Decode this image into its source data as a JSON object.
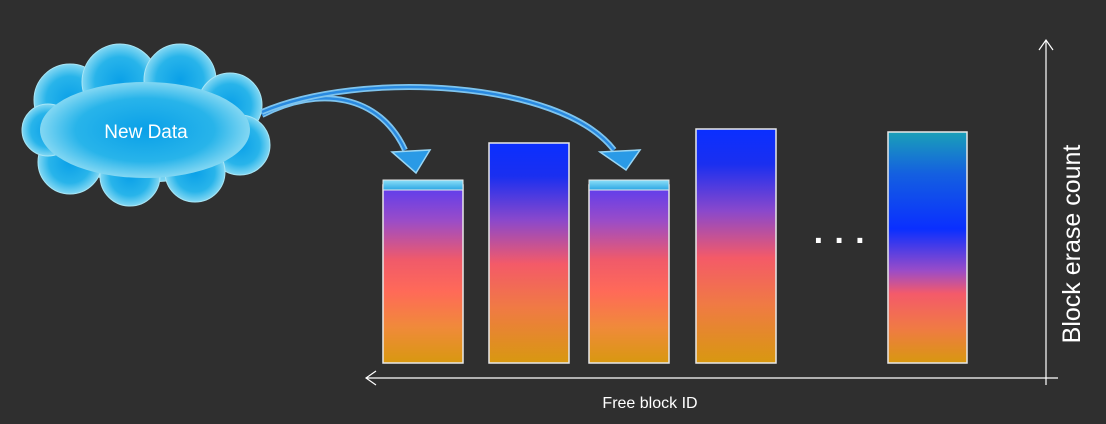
{
  "cloud_label": "New Data",
  "x_axis_label": "Free block ID",
  "y_axis_label": "Block erase count",
  "ellipsis": "· · ·",
  "blocks": [
    {
      "id": "block-1",
      "gradient": "warm",
      "receives_new_data": true
    },
    {
      "id": "block-2",
      "gradient": "cool",
      "receives_new_data": false
    },
    {
      "id": "block-3",
      "gradient": "warm",
      "receives_new_data": true
    },
    {
      "id": "block-4",
      "gradient": "cool",
      "receives_new_data": false
    },
    {
      "id": "block-n",
      "gradient": "teal",
      "receives_new_data": false
    }
  ],
  "colors": {
    "background": "#2f2f2f",
    "cloud_outer": "#8fd6ec",
    "cloud_inner": "#1aa8e6",
    "arrow": "#5ab8ec",
    "axis": "#ffffff",
    "text": "#ffffff"
  }
}
